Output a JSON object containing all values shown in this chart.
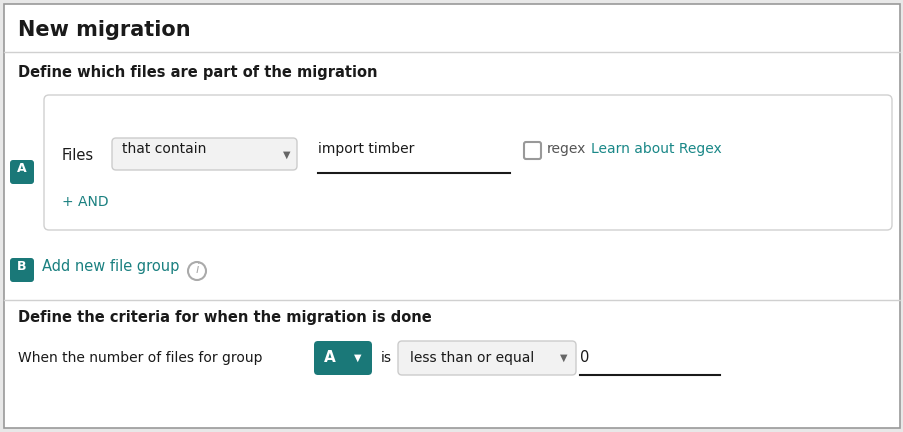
{
  "bg_outer": "#888888",
  "bg_color": "#e8e8e8",
  "panel_bg": "#ffffff",
  "teal_color": "#1a7878",
  "border_color": "#cccccc",
  "border_light": "#d8d8d8",
  "light_gray": "#f0f0f0",
  "text_dark": "#1a1a1a",
  "text_medium": "#555555",
  "link_color": "#1a8888",
  "teal_text": "#1a8080",
  "title": "New migration",
  "section1_label": "Define which files are part of the migration",
  "files_label": "Files",
  "dropdown1_text": "that contain",
  "input_text": "import timber",
  "regex_label": "regex",
  "learn_link": "Learn about Regex",
  "and_label": "+ AND",
  "label_a": "A",
  "label_b": "B",
  "add_group_label": "Add new file group",
  "section2_label": "Define the criteria for when the migration is done",
  "when_label": "When the number of files for group",
  "group_dropdown": "A",
  "is_label": "is",
  "criteria_dropdown": "less than or equal",
  "value_input": "0",
  "figw": 9.04,
  "figh": 4.32,
  "dpi": 100
}
